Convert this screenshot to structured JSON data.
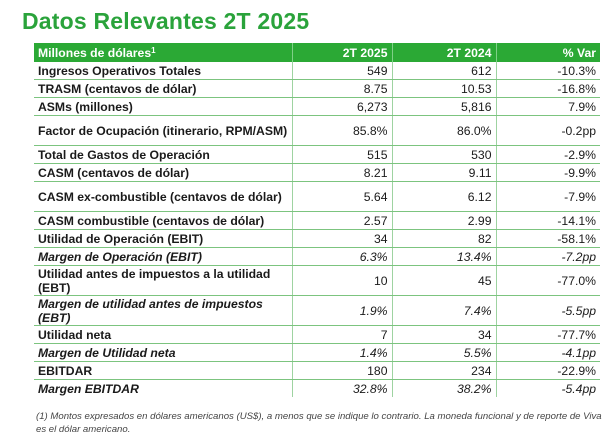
{
  "title": "Datos Relevantes 2T 2025",
  "header": {
    "label": "Millones de dólares",
    "sup": "1",
    "col1": "2T 2025",
    "col2": "2T 2024",
    "col3": "% Var"
  },
  "rows": [
    {
      "label": "Ingresos Operativos Totales",
      "v1": "549",
      "v2": "612",
      "var": "-10.3%",
      "italic": false
    },
    {
      "label": "TRASM (centavos de dólar)",
      "v1": "8.75",
      "v2": "10.53",
      "var": "-16.8%",
      "italic": false
    },
    {
      "label": "ASMs (millones)",
      "v1": "6,273",
      "v2": "5,816",
      "var": "7.9%",
      "italic": false
    },
    {
      "label": "Factor de Ocupación (itinerario, RPM/ASM)",
      "v1": "85.8%",
      "v2": "86.0%",
      "var": "-0.2pp",
      "italic": false,
      "tall": true
    },
    {
      "label": "Total de Gastos de Operación",
      "v1": "515",
      "v2": "530",
      "var": "-2.9%",
      "italic": false
    },
    {
      "label": "CASM (centavos de dólar)",
      "v1": "8.21",
      "v2": "9.11",
      "var": "-9.9%",
      "italic": false
    },
    {
      "label": "CASM ex-combustible (centavos de dólar)",
      "v1": "5.64",
      "v2": "6.12",
      "var": "-7.9%",
      "italic": false,
      "tall": true
    },
    {
      "label": "CASM combustible (centavos de dólar)",
      "v1": "2.57",
      "v2": "2.99",
      "var": "-14.1%",
      "italic": false
    },
    {
      "label": "Utilidad de Operación (EBIT)",
      "v1": "34",
      "v2": "82",
      "var": "-58.1%",
      "italic": false
    },
    {
      "label": "Margen de Operación (EBIT)",
      "v1": "6.3%",
      "v2": "13.4%",
      "var": "-7.2pp",
      "italic": true
    },
    {
      "label": "Utilidad antes de impuestos a la utilidad (EBT)",
      "v1": "10",
      "v2": "45",
      "var": "-77.0%",
      "italic": false,
      "tall": true
    },
    {
      "label": "Margen de utilidad antes de impuestos (EBT)",
      "v1": "1.9%",
      "v2": "7.4%",
      "var": "-5.5pp",
      "italic": true,
      "tall": true
    },
    {
      "label": "Utilidad neta",
      "v1": "7",
      "v2": "34",
      "var": "-77.7%",
      "italic": false
    },
    {
      "label": "Margen de Utilidad neta",
      "v1": "1.4%",
      "v2": "5.5%",
      "var": "-4.1pp",
      "italic": true
    },
    {
      "label": "EBITDAR",
      "v1": "180",
      "v2": "234",
      "var": "-22.9%",
      "italic": false
    },
    {
      "label": "Margen EBITDAR",
      "v1": "32.8%",
      "v2": "38.2%",
      "var": "-5.4pp",
      "italic": true
    }
  ],
  "footnote": "(1) Montos expresados en dólares americanos (US$), a menos que se indique lo contrario. La moneda funcional y de reporte de Viva es el dólar americano.",
  "colors": {
    "accent": "#2aa33b",
    "header_bg": "#2ba935"
  }
}
